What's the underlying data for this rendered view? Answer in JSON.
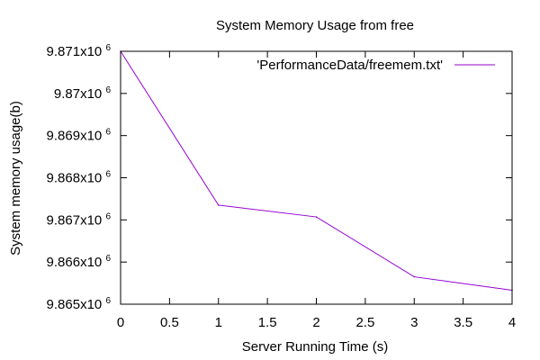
{
  "chart_data": {
    "type": "line",
    "title": "System Memory Usage from free",
    "xlabel": "Server Running Time (s)",
    "ylabel": "System memory usage(b)",
    "xlim": [
      0,
      4
    ],
    "ylim": [
      9865000,
      9871000
    ],
    "x_ticks": [
      {
        "value": 0,
        "label": "0"
      },
      {
        "value": 0.5,
        "label": "0.5"
      },
      {
        "value": 1,
        "label": "1"
      },
      {
        "value": 1.5,
        "label": "1.5"
      },
      {
        "value": 2,
        "label": "2"
      },
      {
        "value": 2.5,
        "label": "2.5"
      },
      {
        "value": 3,
        "label": "3"
      },
      {
        "value": 3.5,
        "label": "3.5"
      },
      {
        "value": 4,
        "label": "4"
      }
    ],
    "y_ticks": [
      {
        "value": 9865000,
        "mantissa": "9.865x10",
        "exponent": "6"
      },
      {
        "value": 9866000,
        "mantissa": "9.866x10",
        "exponent": "6"
      },
      {
        "value": 9867000,
        "mantissa": "9.867x10",
        "exponent": "6"
      },
      {
        "value": 9868000,
        "mantissa": "9.868x10",
        "exponent": "6"
      },
      {
        "value": 9869000,
        "mantissa": "9.869x10",
        "exponent": "6"
      },
      {
        "value": 9870000,
        "mantissa": "9.87x10",
        "exponent": "6"
      },
      {
        "value": 9871000,
        "mantissa": "9.871x10",
        "exponent": "6"
      }
    ],
    "grid": false,
    "legend_position": "top-right",
    "series": [
      {
        "name": "'PerformanceData/freemem.txt'",
        "color": "#9400d3",
        "x": [
          0,
          1,
          2,
          3,
          4
        ],
        "y": [
          9871000,
          9867350,
          9867070,
          9865650,
          9865330
        ]
      }
    ]
  }
}
